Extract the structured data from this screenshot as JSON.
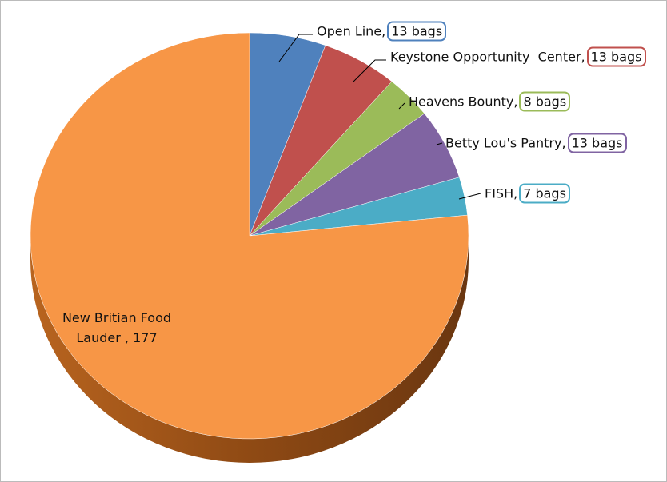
{
  "chart_data": {
    "type": "pie",
    "categories": [
      "Open Line,",
      "Keystone Opportunity  Center,",
      "Heavens Bounty,",
      "Betty Lou's Pantry,",
      "FISH,",
      "New Britian Food Lauder ,"
    ],
    "values": [
      13,
      13,
      8,
      13,
      7,
      177
    ],
    "value_labels": [
      "13 bags",
      "13 bags",
      "8 bags",
      "13 bags",
      "7 bags",
      "177"
    ],
    "colors": [
      "#4f81bd",
      "#c0504d",
      "#9bbb59",
      "#8064a2",
      "#4bacc6",
      "#f79646"
    ]
  }
}
